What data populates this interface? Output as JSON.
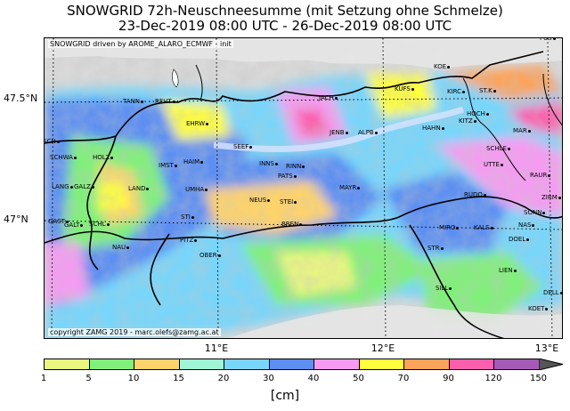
{
  "title_line1": "SNOWGRID 72h-Neuschneesumme (mit Setzung ohne Schmelze)",
  "title_line2": "23-Dec-2019 08:00 UTC - 26-Dec-2019 08:00 UTC",
  "credit_top": "SNOWGRID driven by AROME_ALARO_ECMWF - init",
  "credit_bottom": "copyright ZAMG 2019 - marc.olefs@zamg.ac.at",
  "lat_labels": [
    "47.5°N",
    "47°N"
  ],
  "lon_labels": [
    "11°E",
    "12°E",
    "13°E"
  ],
  "colorbar": {
    "ticks": [
      "1",
      "5",
      "10",
      "15",
      "20",
      "30",
      "40",
      "50",
      "70",
      "90",
      "120",
      "150"
    ],
    "colors": [
      "#e9f67f",
      "#80f07a",
      "#fed36b",
      "#9ff6d7",
      "#78d6fb",
      "#5d8ff2",
      "#f59bf2",
      "#fefe3d",
      "#fda35a",
      "#fc5fae",
      "#a65ab8"
    ],
    "unit": "[cm]"
  },
  "cities": [
    "FÜS",
    "KOE",
    "KUFS",
    "JACH",
    "REUT",
    "TANN",
    "ST.K",
    "KIRC",
    "EHRW",
    "HOCH",
    "KITZ",
    "HAHN",
    "SEEF",
    "JENB",
    "ALPB",
    "MAR",
    "SCH",
    "SCHWA",
    "HOLZ",
    "HAIM",
    "IMST",
    "INNS",
    "RINN",
    "SCHLE",
    "UTTE",
    "RAUR",
    "PATS",
    "ZIRM",
    "LANG",
    "GALZ",
    "LAND",
    "UMHA",
    "MAYR",
    "NEUS",
    "STEI",
    "RUDO",
    "GAST",
    "SONN",
    "NAS",
    "GALT",
    "SCHL",
    "STI",
    "BREN",
    "MIRO",
    "KALS",
    "DOEL",
    "NAU",
    "PITZ",
    "OBER",
    "STR",
    "LIEN",
    "SILL",
    "DELL",
    "KOET"
  ]
}
